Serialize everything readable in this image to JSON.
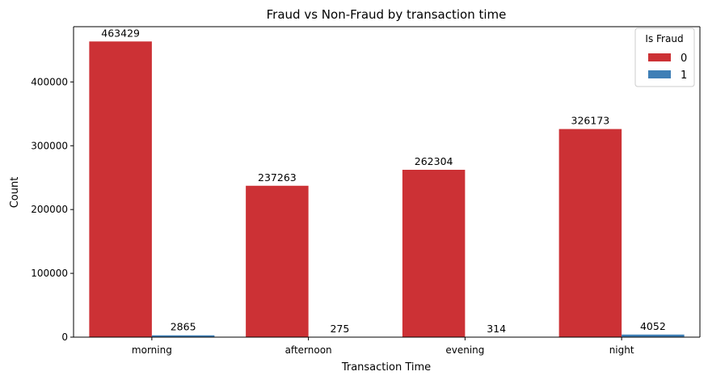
{
  "chart_data": {
    "type": "bar",
    "title": "Fraud vs Non-Fraud by transaction time",
    "xlabel": "Transaction Time",
    "ylabel": "Count",
    "categories": [
      "morning",
      "afternoon",
      "evening",
      "night"
    ],
    "series": [
      {
        "name": "0",
        "values": [
          463429,
          237263,
          262304,
          326173
        ],
        "color": "#cc3135"
      },
      {
        "name": "1",
        "values": [
          2865,
          275,
          314,
          4052
        ],
        "color": "#3f7fb6"
      }
    ],
    "ylim": [
      0,
      486600
    ],
    "yticks": [
      0,
      100000,
      200000,
      300000,
      400000
    ],
    "ytick_labels": [
      "0",
      "100000",
      "200000",
      "300000",
      "400000"
    ],
    "legend": {
      "title": "Is Fraud",
      "position": "top-right"
    },
    "grid": false
  }
}
